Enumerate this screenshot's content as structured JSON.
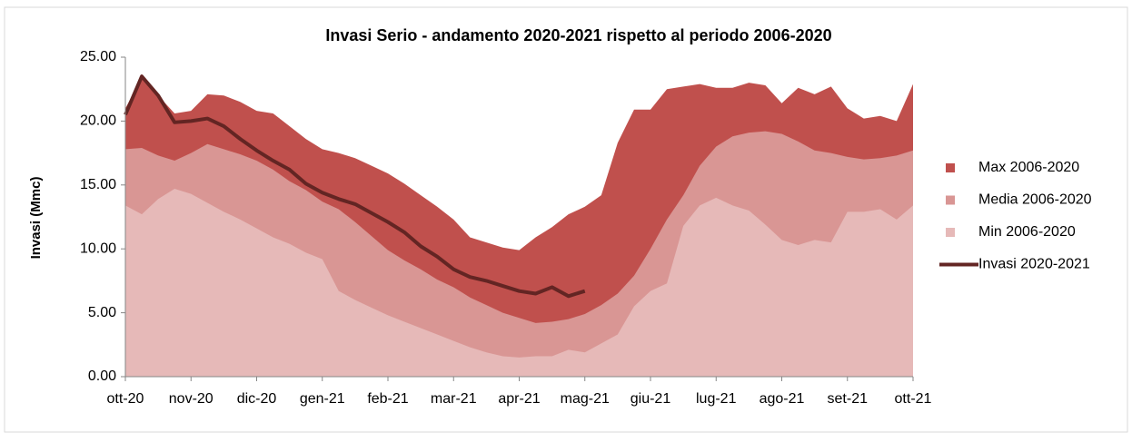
{
  "chart_data": {
    "type": "area-line",
    "title": "Invasi Serio - andamento 2020-2021 rispetto al periodo 2006-2020",
    "y_label": "Invasi (Mmc)",
    "categories": [
      "ott-20",
      null,
      null,
      null,
      "nov-20",
      null,
      null,
      null,
      "dic-20",
      null,
      null,
      null,
      "gen-21",
      null,
      null,
      null,
      "feb-21",
      null,
      null,
      null,
      "mar-21",
      null,
      null,
      null,
      "apr-21",
      null,
      null,
      null,
      "mag-21",
      null,
      null,
      null,
      "giu-21",
      null,
      null,
      null,
      "lug-21",
      null,
      null,
      null,
      "ago-21",
      null,
      null,
      null,
      "set-21",
      null,
      null,
      null,
      "ott-21"
    ],
    "series": [
      {
        "name": "Max 2006-2020",
        "kind": "area",
        "color": "#c0504d",
        "values": [
          21.0,
          23.4,
          22.0,
          20.6,
          20.8,
          22.1,
          22.0,
          21.5,
          20.8,
          20.6,
          19.6,
          18.6,
          17.8,
          17.5,
          17.1,
          16.5,
          15.9,
          15.1,
          14.2,
          13.3,
          12.3,
          10.9,
          10.5,
          10.1,
          9.9,
          10.9,
          11.7,
          12.7,
          13.3,
          14.2,
          18.3,
          20.9,
          20.9,
          22.5,
          22.7,
          22.9,
          22.6,
          22.6,
          23.0,
          22.8,
          21.4,
          22.6,
          22.1,
          22.7,
          21.0,
          20.2,
          20.4,
          20.0,
          22.9
        ]
      },
      {
        "name": "Media 2006-2020",
        "kind": "area",
        "color": "#d99694",
        "values": [
          17.8,
          17.9,
          17.3,
          16.9,
          17.5,
          18.2,
          17.8,
          17.4,
          16.9,
          16.2,
          15.3,
          14.6,
          13.7,
          13.1,
          12.1,
          11.0,
          9.9,
          9.1,
          8.4,
          7.6,
          7.0,
          6.2,
          5.6,
          5.0,
          4.6,
          4.2,
          4.3,
          4.5,
          4.9,
          5.6,
          6.5,
          7.9,
          10.0,
          12.3,
          14.2,
          16.5,
          18.0,
          18.8,
          19.1,
          19.2,
          19.0,
          18.4,
          17.7,
          17.5,
          17.2,
          17.0,
          17.1,
          17.3,
          17.7
        ]
      },
      {
        "name": "Min 2006-2020",
        "kind": "area",
        "color": "#e6b9b8",
        "values": [
          13.4,
          12.7,
          13.9,
          14.7,
          14.3,
          13.6,
          12.9,
          12.3,
          11.6,
          10.9,
          10.4,
          9.7,
          9.2,
          6.7,
          6.0,
          5.4,
          4.8,
          4.3,
          3.8,
          3.3,
          2.8,
          2.3,
          1.9,
          1.6,
          1.5,
          1.6,
          1.6,
          2.1,
          1.9,
          2.6,
          3.3,
          5.5,
          6.7,
          7.3,
          11.8,
          13.4,
          14.0,
          13.4,
          13.0,
          11.9,
          10.7,
          10.3,
          10.7,
          10.5,
          12.9,
          12.9,
          13.1,
          12.3,
          13.4
        ]
      },
      {
        "name": "Invasi 2020-2021",
        "kind": "line",
        "color": "#632523",
        "values": [
          20.5,
          23.5,
          22.0,
          19.9,
          20.0,
          20.2,
          19.6,
          18.6,
          17.7,
          16.9,
          16.2,
          15.1,
          14.4,
          13.9,
          13.5,
          12.8,
          12.1,
          11.3,
          10.2,
          9.4,
          8.4,
          7.8,
          7.5,
          7.1,
          6.7,
          6.5,
          7.0,
          6.3,
          6.7,
          null,
          null,
          null,
          null,
          null,
          null,
          null,
          null,
          null,
          null,
          null,
          null,
          null,
          null,
          null,
          null,
          null,
          null,
          null,
          null
        ]
      }
    ],
    "ylim": [
      0,
      25
    ],
    "yticks": [
      {
        "value": 0,
        "label": "0.00"
      },
      {
        "value": 5,
        "label": "5.00"
      },
      {
        "value": 10,
        "label": "10.00"
      },
      {
        "value": 15,
        "label": "15.00"
      },
      {
        "value": 20,
        "label": "20.00"
      },
      {
        "value": 25,
        "label": "25.00"
      }
    ],
    "legend": "right"
  }
}
